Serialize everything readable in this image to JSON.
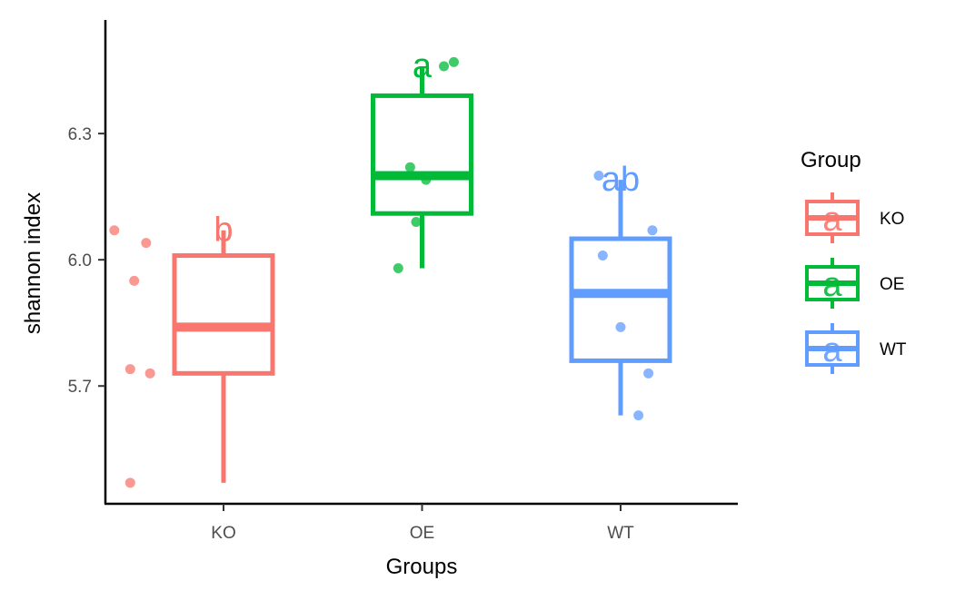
{
  "chart_data": {
    "type": "boxplot",
    "title": "",
    "xlabel": "Groups",
    "ylabel": "shannon index",
    "categories": [
      "KO",
      "OE",
      "WT"
    ],
    "ylim": [
      5.42,
      6.57
    ],
    "yticks": [
      5.7,
      6.0,
      6.3
    ],
    "ytick_labels": [
      "5.7",
      "6.0",
      "6.3"
    ],
    "grid": false,
    "legend": {
      "title": "Group",
      "position": "right",
      "labels": [
        "KO",
        "OE",
        "WT"
      ]
    },
    "series": [
      {
        "group": "KO",
        "color": "#F8766D",
        "letter": "b",
        "whisker_low": 5.47,
        "q1": 5.73,
        "median": 5.84,
        "q3": 6.01,
        "whisker_high": 6.07,
        "points": [
          {
            "pos": 0.45,
            "value": 6.07
          },
          {
            "pos": 0.55,
            "value": 5.95
          },
          {
            "pos": 0.61,
            "value": 6.04
          },
          {
            "pos": 0.53,
            "value": 5.74
          },
          {
            "pos": 0.63,
            "value": 5.73
          },
          {
            "pos": 0.53,
            "value": 5.47
          }
        ]
      },
      {
        "group": "OE",
        "color": "#00BA38",
        "letter": "a",
        "whisker_low": 5.98,
        "q1": 6.11,
        "median": 6.2,
        "q3": 6.39,
        "whisker_high": 6.46,
        "points": [
          {
            "pos": 2.11,
            "value": 6.46
          },
          {
            "pos": 2.16,
            "value": 6.47
          },
          {
            "pos": 1.94,
            "value": 6.22
          },
          {
            "pos": 2.02,
            "value": 6.19
          },
          {
            "pos": 1.97,
            "value": 6.09
          },
          {
            "pos": 1.88,
            "value": 5.98
          }
        ]
      },
      {
        "group": "WT",
        "color": "#619CFF",
        "letter": "ab",
        "whisker_low": 5.63,
        "q1": 5.76,
        "median": 5.92,
        "q3": 6.05,
        "whisker_high": 6.19,
        "points": [
          {
            "pos": 2.89,
            "value": 6.2
          },
          {
            "pos": 3.16,
            "value": 6.07
          },
          {
            "pos": 2.91,
            "value": 6.01
          },
          {
            "pos": 3.0,
            "value": 5.84
          },
          {
            "pos": 3.14,
            "value": 5.73
          },
          {
            "pos": 3.09,
            "value": 5.63
          }
        ]
      }
    ]
  }
}
